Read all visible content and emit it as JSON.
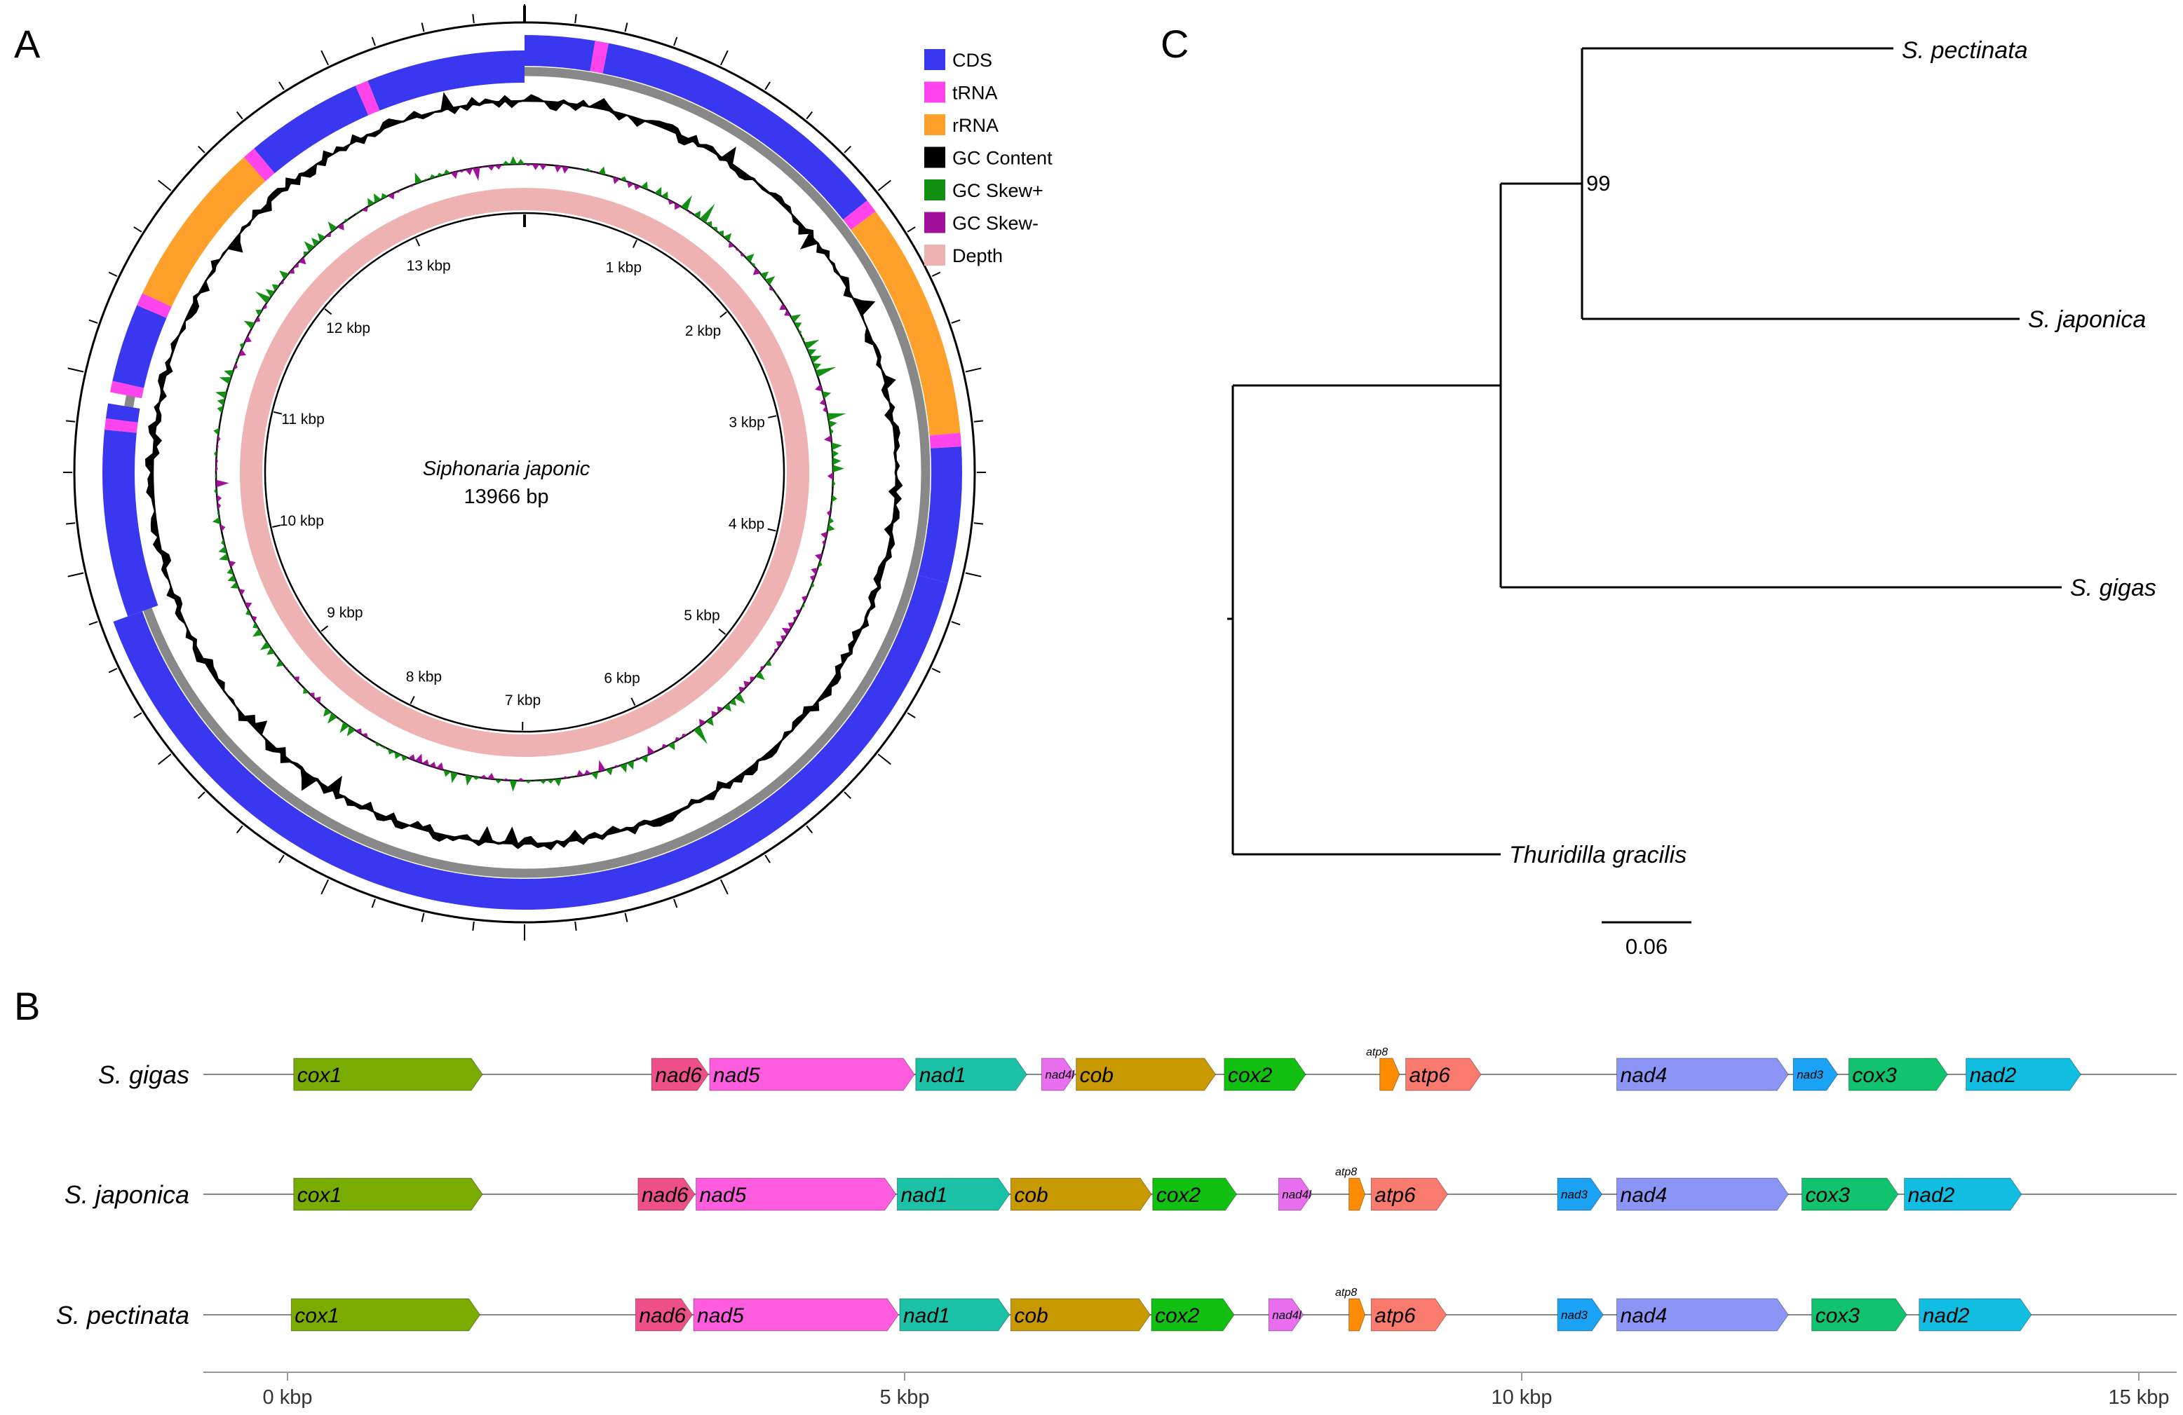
{
  "panel_labels": {
    "a": "A",
    "b": "B",
    "c": "C"
  },
  "circle": {
    "species": "Siphonaria japonic",
    "length": "13966 bp",
    "total_bp": 13966,
    "ticks": [
      "1 kbp",
      "2 kbp",
      "3 kbp",
      "4 kbp",
      "5 kbp",
      "6 kbp",
      "7 kbp",
      "8 kbp",
      "9 kbp",
      "10 kbp",
      "11 kbp",
      "12 kbp",
      "13 kbp"
    ],
    "legend": [
      {
        "label": "CDS",
        "color": "#3a37f0"
      },
      {
        "label": "tRNA",
        "color": "#ff44ee"
      },
      {
        "label": "rRNA",
        "color": "#ffa02a"
      },
      {
        "label": "GC Content",
        "color": "#000000"
      },
      {
        "label": "GC Skew+",
        "color": "#119011"
      },
      {
        "label": "GC Skew-",
        "color": "#a0109a"
      },
      {
        "label": "Depth",
        "color": "#eeb2b2"
      }
    ],
    "features": [
      {
        "type": "CDS",
        "start": 0,
        "end": 360,
        "strand": "+"
      },
      {
        "type": "tRNA",
        "start": 360,
        "end": 430,
        "strand": "+"
      },
      {
        "type": "CDS",
        "start": 430,
        "end": 2000,
        "strand": "+"
      },
      {
        "type": "tRNA",
        "start": 2000,
        "end": 2070,
        "strand": "+"
      },
      {
        "type": "rRNA",
        "start": 2070,
        "end": 3290,
        "strand": "+"
      },
      {
        "type": "tRNA",
        "start": 3290,
        "end": 3360,
        "strand": "+"
      },
      {
        "type": "CDS",
        "start": 3360,
        "end": 4060,
        "strand": "+"
      },
      {
        "type": "CDS",
        "start": 4060,
        "end": 9700,
        "strand": "+"
      },
      {
        "type": "CDS",
        "start": 9700,
        "end": 10700,
        "strand": "-"
      },
      {
        "type": "tRNA",
        "start": 10700,
        "end": 10760,
        "strand": "-"
      },
      {
        "type": "CDS",
        "start": 10760,
        "end": 10840,
        "strand": "-"
      },
      {
        "type": "tRNA",
        "start": 10900,
        "end": 10960,
        "strand": "-"
      },
      {
        "type": "CDS",
        "start": 10960,
        "end": 11380,
        "strand": "-"
      },
      {
        "type": "tRNA",
        "start": 11380,
        "end": 11450,
        "strand": "-"
      },
      {
        "type": "rRNA",
        "start": 11450,
        "end": 12350,
        "strand": "-"
      },
      {
        "type": "tRNA",
        "start": 12350,
        "end": 12420,
        "strand": "-"
      },
      {
        "type": "CDS",
        "start": 12420,
        "end": 13050,
        "strand": "-"
      },
      {
        "type": "tRNA",
        "start": 13050,
        "end": 13120,
        "strand": "-"
      },
      {
        "type": "CDS",
        "start": 13120,
        "end": 13966,
        "strand": "-"
      }
    ]
  },
  "tree": {
    "taxa": [
      "S. pectinata",
      "S. japonica",
      "S. gigas",
      "Thuridilla gracilis"
    ],
    "bootstrap": "99",
    "scale_label": "0.06",
    "scale_value": 0.06
  },
  "linear": {
    "axis_ticks": [
      "0 kbp",
      "5 kbp",
      "10 kbp",
      "15 kbp"
    ],
    "axis_values": [
      0,
      5000,
      10000,
      15000
    ],
    "colors": {
      "cox1": "#7aab00",
      "nad6": "#f0508a",
      "nad5": "#ff5cdf",
      "nad1": "#1cc2a8",
      "nad4l": "#ea6ff0",
      "cob": "#c99a00",
      "cox2": "#11c011",
      "atp8": "#ff8c00",
      "atp6": "#fa7a6e",
      "nad4": "#8a95f5",
      "nad3": "#1aa2f5",
      "cox3": "#11c36e",
      "nad2": "#11bde0"
    },
    "tracks": [
      {
        "name": "S. gigas",
        "genes": [
          {
            "label": "cox1",
            "start": 50,
            "end": 1580
          },
          {
            "label": "nad6",
            "start": 2950,
            "end": 3410
          },
          {
            "label": "nad5",
            "start": 3420,
            "end": 5080
          },
          {
            "label": "nad1",
            "start": 5090,
            "end": 5990
          },
          {
            "label": "nad4l",
            "start": 6110,
            "end": 6380
          },
          {
            "label": "cob",
            "start": 6390,
            "end": 7520
          },
          {
            "label": "cox2",
            "start": 7590,
            "end": 8250
          },
          {
            "label": "atp8",
            "start": 8850,
            "end": 9010
          },
          {
            "label": "atp6",
            "start": 9060,
            "end": 9670
          },
          {
            "label": "nad4",
            "start": 10770,
            "end": 12160
          },
          {
            "label": "nad3",
            "start": 12200,
            "end": 12560
          },
          {
            "label": "cox3",
            "start": 12650,
            "end": 13450
          },
          {
            "label": "nad2",
            "start": 13600,
            "end": 14530
          }
        ]
      },
      {
        "name": "S. japonica",
        "genes": [
          {
            "label": "cox1",
            "start": 50,
            "end": 1580
          },
          {
            "label": "nad6",
            "start": 2840,
            "end": 3300
          },
          {
            "label": "nad5",
            "start": 3310,
            "end": 4930
          },
          {
            "label": "nad1",
            "start": 4940,
            "end": 5850
          },
          {
            "label": "cob",
            "start": 5860,
            "end": 7000
          },
          {
            "label": "cox2",
            "start": 7010,
            "end": 7690
          },
          {
            "label": "nad4l",
            "start": 8030,
            "end": 8300
          },
          {
            "label": "atp8",
            "start": 8600,
            "end": 8730
          },
          {
            "label": "atp6",
            "start": 8780,
            "end": 9400
          },
          {
            "label": "nad3",
            "start": 10290,
            "end": 10650
          },
          {
            "label": "nad4",
            "start": 10770,
            "end": 12160
          },
          {
            "label": "cox3",
            "start": 12270,
            "end": 13050
          },
          {
            "label": "nad2",
            "start": 13100,
            "end": 14050
          }
        ]
      },
      {
        "name": "S. pectinata",
        "genes": [
          {
            "label": "cox1",
            "start": 30,
            "end": 1560
          },
          {
            "label": "nad6",
            "start": 2820,
            "end": 3280
          },
          {
            "label": "nad5",
            "start": 3290,
            "end": 4950
          },
          {
            "label": "nad1",
            "start": 4960,
            "end": 5850
          },
          {
            "label": "cob",
            "start": 5860,
            "end": 6990
          },
          {
            "label": "cox2",
            "start": 7000,
            "end": 7670
          },
          {
            "label": "nad4l",
            "start": 7950,
            "end": 8230
          },
          {
            "label": "atp8",
            "start": 8600,
            "end": 8730
          },
          {
            "label": "atp6",
            "start": 8780,
            "end": 9390
          },
          {
            "label": "nad3",
            "start": 10290,
            "end": 10660
          },
          {
            "label": "nad4",
            "start": 10770,
            "end": 12160
          },
          {
            "label": "cox3",
            "start": 12350,
            "end": 13120
          },
          {
            "label": "nad2",
            "start": 13220,
            "end": 14130
          }
        ]
      }
    ]
  }
}
